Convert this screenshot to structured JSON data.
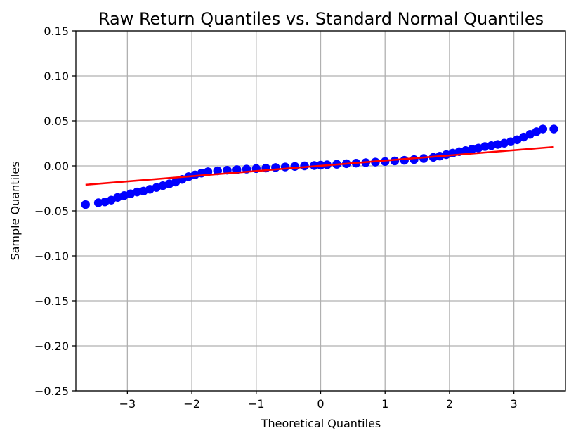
{
  "chart_data": {
    "type": "scatter",
    "title": "Raw Return Quantiles vs. Standard Normal Quantiles",
    "xlabel": "Theoretical Quantiles",
    "ylabel": "Sample Quantiles",
    "xlim": [
      -3.8,
      3.8
    ],
    "ylim": [
      -0.25,
      0.15
    ],
    "xticks": [
      -3,
      -2,
      -1,
      0,
      1,
      2,
      3
    ],
    "xtick_labels": [
      "−3",
      "−2",
      "−1",
      "0",
      "1",
      "2",
      "3"
    ],
    "yticks": [
      -0.25,
      -0.2,
      -0.15,
      -0.1,
      -0.05,
      0.0,
      0.05,
      0.1,
      0.15
    ],
    "ytick_labels": [
      "−0.25",
      "−0.20",
      "−0.15",
      "−0.10",
      "−0.05",
      "0.00",
      "0.05",
      "0.10",
      "0.15"
    ],
    "grid": true,
    "series": [
      {
        "kind": "points",
        "color": "#0000ff",
        "x": [
          -3.65,
          -3.45,
          -3.35,
          -3.25,
          -3.15,
          -3.05,
          -2.95,
          -2.85,
          -2.75,
          -2.65,
          -2.55,
          -2.45,
          -2.35,
          -2.25,
          -2.15,
          -2.05,
          -1.95,
          -1.85,
          -1.75,
          -1.6,
          -1.45,
          -1.3,
          -1.15,
          -1.0,
          -0.85,
          -0.7,
          -0.55,
          -0.4,
          -0.25,
          -0.1,
          0.0,
          0.1,
          0.25,
          0.4,
          0.55,
          0.7,
          0.85,
          1.0,
          1.15,
          1.3,
          1.45,
          1.6,
          1.75,
          1.85,
          1.95,
          2.05,
          2.15,
          2.25,
          2.35,
          2.45,
          2.55,
          2.65,
          2.75,
          2.85,
          2.95,
          3.05,
          3.15,
          3.25,
          3.35,
          3.45,
          3.62
        ],
        "y": [
          -0.043,
          -0.041,
          -0.04,
          -0.038,
          -0.035,
          -0.033,
          -0.031,
          -0.029,
          -0.028,
          -0.026,
          -0.024,
          -0.022,
          -0.02,
          -0.018,
          -0.015,
          -0.012,
          -0.01,
          -0.008,
          -0.0065,
          -0.0055,
          -0.0048,
          -0.0042,
          -0.0036,
          -0.003,
          -0.0024,
          -0.0018,
          -0.0012,
          -0.0006,
          0.0,
          0.0004,
          0.0008,
          0.0012,
          0.0018,
          0.0024,
          0.003,
          0.0036,
          0.0042,
          0.0048,
          0.0055,
          0.0062,
          0.007,
          0.0082,
          0.0095,
          0.0108,
          0.0125,
          0.0142,
          0.0158,
          0.017,
          0.0185,
          0.0198,
          0.0215,
          0.0225,
          0.0238,
          0.0252,
          0.0268,
          0.029,
          0.032,
          0.035,
          0.038,
          0.041,
          0.041
        ]
      },
      {
        "kind": "line",
        "color": "#ff0000",
        "x": [
          -3.65,
          3.62
        ],
        "y": [
          -0.021,
          0.021
        ]
      }
    ]
  }
}
